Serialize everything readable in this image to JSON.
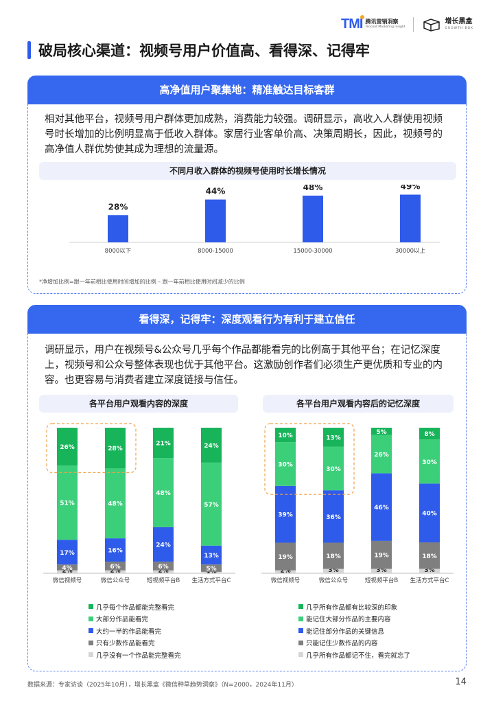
{
  "brand": {
    "tmi_mark": "TMI",
    "tmi_cn": "腾讯营销洞察",
    "tmi_en": "Tencent Marketing Insight",
    "gb_cn": "增长黑盒",
    "gb_en": "GROWTH BOX"
  },
  "page_title": "破局核心渠道：视频号用户价值高、看得深、记得牢",
  "section1": {
    "header": "高净值用户聚集地：精准触达目标客群",
    "body": "相对其他平台，视频号用户群体更加成熟，消费能力较强。调研显示，高收入人群使用视频号时长增加的比例明显高于低收入群体。家居行业客单价高、决策周期长，因此，视频号的高净值人群优势使其成为理想的流量源。",
    "chart_title": "不同月收入群体的视频号使用时长增长情况",
    "note": "*净增加比例=跟一年前相比使用时间增加的比例 – 跟一年前相比使用时间减少的比例"
  },
  "section2": {
    "header": "看得深，记得牢：深度观看行为有利于建立信任",
    "body": "调研显示，用户在视频号&公众号几乎每个作品都能看完的比例高于其他平台；在记忆深度上，视频号和公众号整体表现也优于其他平台。这激励创作者们必须生产更优质和专业的内容。也更容易与消费者建立深度链接与信任。",
    "left_chart_title": "各平台用户观看内容的深度",
    "right_chart_title": "各平台用户观看内容后的记忆深度"
  },
  "footer": {
    "source": "数据来源：专家访谈（2025年10月），增长黑盒《微信种草趋势洞察》（N=2000，2024年11月）",
    "page_number": "14"
  },
  "colors": {
    "accent": "#3568ee",
    "bar_blue": "#2f5bea",
    "dark_green": "#17b45a",
    "light_green": "#3ccf7a",
    "mid_blue": "#2f5bea",
    "gray": "#7f7f7f",
    "light_gray": "#d6d6d6",
    "highlight": "#f0a24a"
  },
  "chart_data": [
    {
      "type": "bar",
      "title": "不同月收入群体的视频号使用时长增长情况",
      "categories": [
        "8000以下",
        "8000-15000",
        "15000-30000",
        "30000以上"
      ],
      "values": [
        28,
        44,
        48,
        49
      ],
      "value_labels": [
        "28%",
        "44%",
        "48%",
        "49%"
      ],
      "ylim": [
        0,
        55
      ]
    },
    {
      "type": "bar",
      "stacked": true,
      "title": "各平台用户观看内容的深度",
      "categories": [
        "微信视频号",
        "微信公众号",
        "短视频平台B",
        "生活方式平台C"
      ],
      "series": [
        {
          "name": "几乎没有一个作品能完整看完",
          "values": [
            2,
            2,
            2,
            1
          ],
          "color": "#d6d6d6"
        },
        {
          "name": "只有少数作品能看完",
          "values": [
            4,
            6,
            6,
            5
          ],
          "color": "#7f7f7f"
        },
        {
          "name": "大约一半的作品能看完",
          "values": [
            17,
            16,
            24,
            13
          ],
          "color": "#2f5bea"
        },
        {
          "name": "大部分作品能看完",
          "values": [
            51,
            48,
            48,
            57
          ],
          "color": "#3ccf7a"
        },
        {
          "name": "几乎每个作品都能完整看完",
          "values": [
            26,
            28,
            21,
            24
          ],
          "color": "#17b45a"
        }
      ],
      "highlighted": [
        "微信视频号",
        "微信公众号"
      ]
    },
    {
      "type": "bar",
      "stacked": true,
      "title": "各平台用户观看内容后的记忆深度",
      "categories": [
        "微信视频号",
        "微信公众号",
        "短视频平台B",
        "生活方式平台C"
      ],
      "series": [
        {
          "name": "几乎所有作品都记不住，看完就忘了",
          "values": [
            2,
            3,
            3,
            3
          ],
          "color": "#d6d6d6"
        },
        {
          "name": "只能记住少数作品的内容",
          "values": [
            19,
            18,
            19,
            18
          ],
          "color": "#7f7f7f"
        },
        {
          "name": "能记住部分作品的关键信息",
          "values": [
            39,
            36,
            46,
            40
          ],
          "color": "#2f5bea"
        },
        {
          "name": "能记住大部分作品的主要内容",
          "values": [
            30,
            30,
            26,
            30
          ],
          "color": "#3ccf7a"
        },
        {
          "name": "几乎所有作品都有比较深的印象",
          "values": [
            10,
            13,
            5,
            8
          ],
          "color": "#17b45a"
        }
      ],
      "highlighted": [
        "微信视频号",
        "微信公众号"
      ]
    }
  ]
}
